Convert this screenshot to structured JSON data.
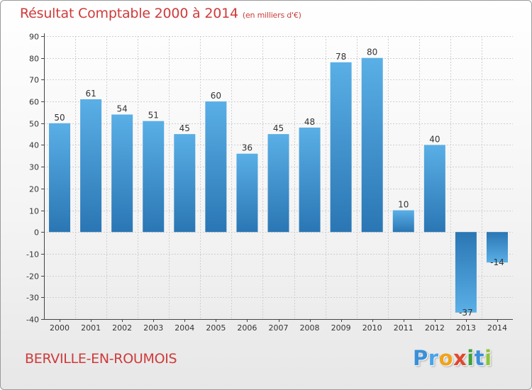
{
  "title": {
    "main": "Résultat Comptable 2000 à 2014",
    "unit": "(en milliers d'€)"
  },
  "city": "BERVILLE-EN-ROUMOIS",
  "logo": {
    "letters": [
      {
        "ch": "P",
        "color": "#3b8fd8"
      },
      {
        "ch": "r",
        "color": "#4aa3e8"
      },
      {
        "ch": "o",
        "color": "#f0a21a"
      },
      {
        "ch": "x",
        "color": "#e0482f"
      },
      {
        "ch": "i",
        "color": "#3fa33b"
      },
      {
        "ch": "t",
        "color": "#3b8fd8"
      },
      {
        "ch": "i",
        "color": "#8fc43a"
      }
    ]
  },
  "colors": {
    "bar_light": "#5aafe6",
    "bar_dark": "#2a76b4",
    "grid": "#cfcfcf",
    "axis": "#444444"
  },
  "chart_data": {
    "type": "bar",
    "title": "Résultat Comptable 2000 à 2014",
    "ylabel": "en milliers d'€",
    "xlabel": "",
    "categories": [
      "2000",
      "2001",
      "2002",
      "2003",
      "2004",
      "2005",
      "2006",
      "2007",
      "2008",
      "2009",
      "2010",
      "2011",
      "2012",
      "2013",
      "2014"
    ],
    "values": [
      50,
      61,
      54,
      51,
      45,
      60,
      36,
      45,
      48,
      78,
      80,
      10,
      40,
      -37,
      -14
    ],
    "data_labels": [
      "50",
      "61",
      "54",
      "51",
      "45",
      "60",
      "36",
      "45",
      "48",
      "78",
      "80",
      "10",
      "40",
      "-37",
      "-14"
    ],
    "ylim": [
      -40,
      90
    ],
    "yticks": [
      90,
      80,
      70,
      60,
      50,
      40,
      30,
      20,
      10,
      0,
      -10,
      -20,
      -30,
      -40
    ],
    "ytick_labels": [
      "90",
      "80",
      "70",
      "60",
      "50",
      "40",
      "30",
      "20",
      "10",
      "0",
      "-10",
      "-20",
      "-30",
      "-40"
    ],
    "grid": true
  }
}
